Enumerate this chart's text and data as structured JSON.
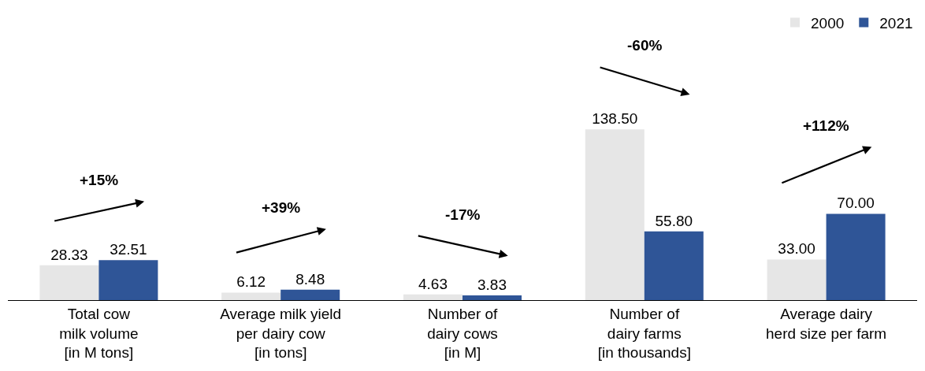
{
  "chart_data": {
    "type": "bar",
    "categories": [
      "Total cow\nmilk volume\n[in M tons]",
      "Average milk yield\nper dairy cow\n[in tons]",
      "Number of\ndairy cows\n[in M]",
      "Number of\ndairy farms\n[in thousands]",
      "Average dairy\nherd size per farm"
    ],
    "series": [
      {
        "name": "2000",
        "color": "#e6e6e6",
        "values": [
          28.33,
          6.12,
          4.63,
          138.5,
          33.0
        ],
        "value_labels": [
          "28.33",
          "6.12",
          "4.63",
          "138.50",
          "33.00"
        ]
      },
      {
        "name": "2021",
        "color": "#2f5597",
        "values": [
          32.51,
          8.48,
          3.83,
          55.8,
          70.0
        ],
        "value_labels": [
          "32.51",
          "8.48",
          "3.83",
          "55.80",
          "70.00"
        ]
      }
    ],
    "annotations": [
      "+15%",
      "+39%",
      "-17%",
      "-60%",
      "+112%"
    ],
    "legend": "top right",
    "tick_labels": "x"
  }
}
